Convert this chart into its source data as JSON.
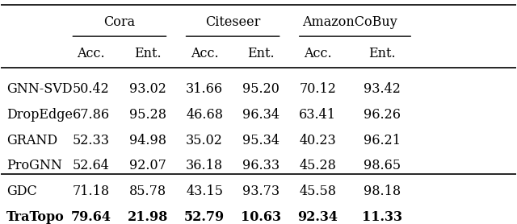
{
  "group_headers": [
    "Cora",
    "Citeseer",
    "AmazonCoBuy"
  ],
  "col_headers": [
    "Acc.",
    "Ent.",
    "Acc.",
    "Ent.",
    "Acc.",
    "Ent."
  ],
  "row_labels": [
    "GNN-SVD",
    "DropEdge",
    "GRAND",
    "ProGNN",
    "GDC",
    "TraTopo"
  ],
  "data": [
    [
      "50.42",
      "93.02",
      "31.66",
      "95.20",
      "70.12",
      "93.42"
    ],
    [
      "67.86",
      "95.28",
      "46.68",
      "96.34",
      "63.41",
      "96.26"
    ],
    [
      "52.33",
      "94.98",
      "35.02",
      "95.34",
      "40.23",
      "96.21"
    ],
    [
      "52.64",
      "92.07",
      "36.18",
      "96.33",
      "45.28",
      "98.65"
    ],
    [
      "71.18",
      "85.78",
      "43.15",
      "93.73",
      "45.58",
      "98.18"
    ],
    [
      "79.64",
      "21.98",
      "52.79",
      "10.63",
      "92.34",
      "11.33"
    ]
  ],
  "bold_row": 5,
  "bg_color": "white",
  "font_size": 11.5,
  "header_font_size": 11.5
}
